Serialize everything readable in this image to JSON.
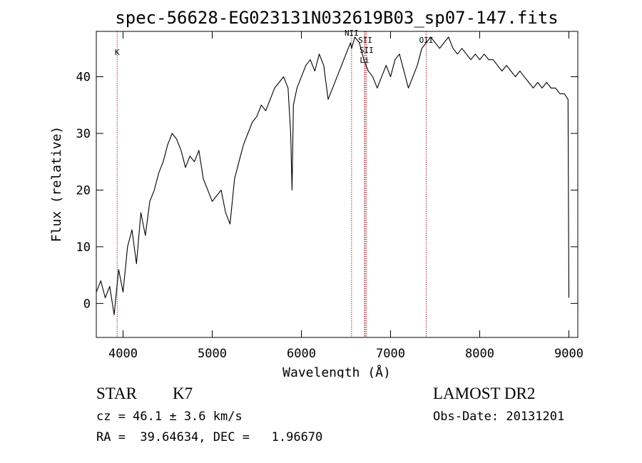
{
  "chart_data": {
    "type": "line",
    "title": "spec-56628-EG023131N032619B03_sp07-147.fits",
    "xlabel": "Wavelength (Å)",
    "ylabel": "Flux (relative)",
    "xlim": [
      3700,
      9100
    ],
    "ylim": [
      -6,
      48
    ],
    "xticks": [
      4000,
      5000,
      6000,
      7000,
      8000,
      9000
    ],
    "yticks": [
      0,
      10,
      20,
      30,
      40
    ],
    "grid": false,
    "series": [
      {
        "x": [
          3700,
          3750,
          3800,
          3850,
          3900,
          3950,
          4000,
          4050,
          4100,
          4150,
          4200,
          4250,
          4300,
          4350,
          4400,
          4450,
          4500,
          4550,
          4600,
          4650,
          4700,
          4750,
          4800,
          4850,
          4900,
          4950,
          5000,
          5050,
          5100,
          5150,
          5200,
          5250,
          5300,
          5350,
          5400,
          5450,
          5500,
          5550,
          5600,
          5650,
          5700,
          5750,
          5800,
          5850,
          5880,
          5895,
          5910,
          5950,
          6000,
          6050,
          6100,
          6150,
          6200,
          6250,
          6300,
          6350,
          6400,
          6450,
          6500,
          6550,
          6563,
          6600,
          6650,
          6700,
          6750,
          6800,
          6850,
          6900,
          6950,
          7000,
          7050,
          7100,
          7150,
          7200,
          7250,
          7300,
          7350,
          7400,
          7450,
          7500,
          7550,
          7600,
          7650,
          7700,
          7750,
          7800,
          7850,
          7900,
          7950,
          8000,
          8050,
          8100,
          8150,
          8200,
          8250,
          8300,
          8350,
          8400,
          8450,
          8500,
          8550,
          8600,
          8650,
          8700,
          8750,
          8800,
          8850,
          8900,
          8950,
          8990,
          9000
        ],
        "y": [
          2,
          4,
          1,
          3,
          -2,
          6,
          2,
          10,
          13,
          7,
          16,
          12,
          18,
          20,
          23,
          25,
          28,
          30,
          29,
          27,
          24,
          26,
          25,
          27,
          22,
          20,
          18,
          19,
          20,
          16,
          14,
          22,
          25,
          28,
          30,
          32,
          33,
          35,
          34,
          36,
          38,
          39,
          40,
          38,
          30,
          20,
          35,
          38,
          40,
          42,
          43,
          41,
          44,
          42,
          36,
          38,
          40,
          42,
          44,
          46,
          45,
          47,
          46,
          43,
          41,
          40,
          38,
          40,
          42,
          40,
          43,
          44,
          41,
          38,
          40,
          42,
          45,
          46,
          47,
          46,
          45,
          46,
          47,
          45,
          44,
          45,
          44,
          43,
          44,
          43,
          44,
          43,
          43,
          42,
          41,
          42,
          41,
          40,
          41,
          40,
          39,
          38,
          39,
          38,
          39,
          38,
          38,
          37,
          37,
          36,
          1
        ]
      }
    ],
    "lines": [
      {
        "x": 3934,
        "label": "K"
      },
      {
        "x": 6563,
        "label": "NII"
      },
      {
        "x": 6716,
        "label": "SII"
      },
      {
        "x": 6731,
        "label": "SII"
      },
      {
        "x": 6708,
        "label": "Li"
      },
      {
        "x": 7400,
        "label": "OII"
      }
    ]
  },
  "info": {
    "class": "STAR",
    "subclass": "K7",
    "survey": "LAMOST DR2",
    "cz_line": "cz = 46.1 ± 3.6 km/s",
    "obs_date_line": "Obs-Date: 20131201",
    "radec_line": "RA =  39.64634, DEC =   1.96670"
  },
  "colors": {
    "spectrum": "#000000",
    "line_marker": "#a0303a",
    "text": "#000000"
  }
}
